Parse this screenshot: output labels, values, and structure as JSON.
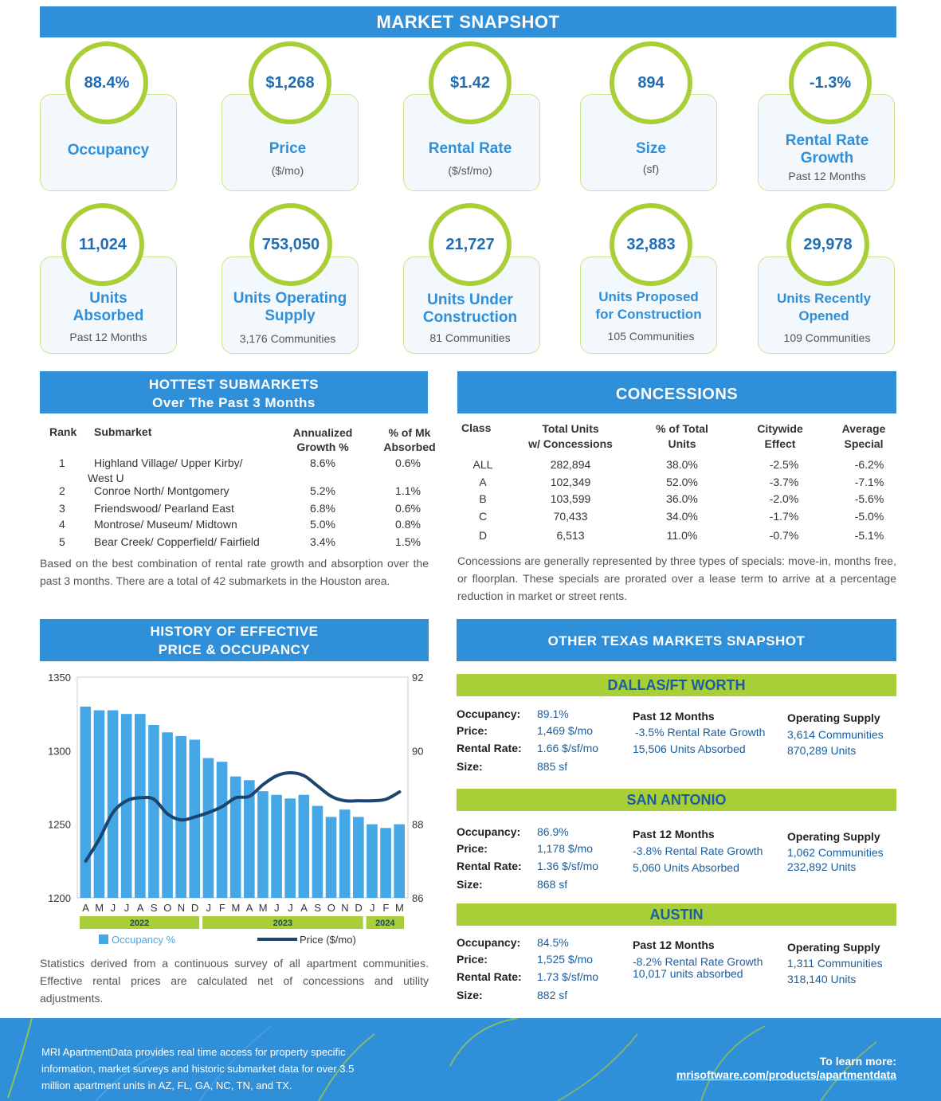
{
  "snapshot_title": "MARKET SNAPSHOT",
  "stats_row1": [
    {
      "value": "88.4%",
      "label": "Occupancy",
      "sub": ""
    },
    {
      "value": "$1,268",
      "label": "Price",
      "sub": "($/mo)"
    },
    {
      "value": "$1.42",
      "label": "Rental Rate",
      "sub": "($/sf/mo)"
    },
    {
      "value": "894",
      "label": "Size",
      "sub": "(sf)"
    },
    {
      "value": "-1.3%",
      "label": "Rental Rate Growth",
      "sub": "Past 12 Months"
    }
  ],
  "stats_row2": [
    {
      "value": "11,024",
      "label": "Units Absorbed",
      "sub": "Past 12 Months"
    },
    {
      "value": "753,050",
      "label": "Units Operating Supply",
      "sub": "3,176 Communities"
    },
    {
      "value": "21,727",
      "label": "Units Under Construction",
      "sub": "81 Communities"
    },
    {
      "value": "32,883",
      "label": "Units Proposed for Construction",
      "sub": "105 Communities"
    },
    {
      "value": "29,978",
      "label": "Units Recently Opened",
      "sub": "109 Communities"
    }
  ],
  "hottest": {
    "title1": "HOTTEST SUBMARKETS",
    "title2": "Over The Past 3 Months",
    "headers": {
      "rank": "Rank",
      "submarket": "Submarket",
      "growth1": "Annualized",
      "growth2": "Growth %",
      "abs1": "% of Mk",
      "abs2": "Absorbed"
    },
    "rows": [
      {
        "rank": "1",
        "name": "Highland Village/ Upper Kirby/",
        "name2": "West U",
        "growth": "8.6%",
        "absorbed": "0.6%"
      },
      {
        "rank": "2",
        "name": "Conroe North/ Montgomery",
        "name2": "",
        "growth": "5.2%",
        "absorbed": "1.1%"
      },
      {
        "rank": "3",
        "name": "Friendswood/ Pearland East",
        "name2": "",
        "growth": "6.8%",
        "absorbed": "0.6%"
      },
      {
        "rank": "4",
        "name": "Montrose/ Museum/ Midtown",
        "name2": "",
        "growth": "5.0%",
        "absorbed": "0.8%"
      },
      {
        "rank": "5",
        "name": "Bear Creek/ Copperfield/ Fairfield",
        "name2": "",
        "growth": "3.4%",
        "absorbed": "1.5%"
      }
    ],
    "note": "Based on the best combination of rental rate growth and absorption over the past 3 months. There are a total of 42 submarkets in the Houston area."
  },
  "concessions": {
    "title": "CONCESSIONS",
    "headers": {
      "c1": "Class",
      "c2a": "Total Units",
      "c2b": "w/ Concessions",
      "c3a": "% of Total",
      "c3b": "Units",
      "c4a": "Citywide",
      "c4b": "Effect",
      "c5a": "Average",
      "c5b": "Special"
    },
    "rows": [
      {
        "cls": "ALL",
        "units": "282,894",
        "pct": "38.0%",
        "effect": "-2.5%",
        "special": "-6.2%"
      },
      {
        "cls": "A",
        "units": "102,349",
        "pct": "52.0%",
        "effect": "-3.7%",
        "special": "-7.1%"
      },
      {
        "cls": "B",
        "units": "103,599",
        "pct": "36.0%",
        "effect": "-2.0%",
        "special": "-5.6%"
      },
      {
        "cls": "C",
        "units": "70,433",
        "pct": "34.0%",
        "effect": "-1.7%",
        "special": "-5.0%"
      },
      {
        "cls": "D",
        "units": "6,513",
        "pct": "11.0%",
        "effect": "-0.7%",
        "special": "-5.1%"
      }
    ],
    "note": "Concessions are generally represented by three types of specials: move-in, months free, or floorplan. These specials are prorated over a lease term to arrive at a percentage reduction in market or street rents."
  },
  "history_title1": "HISTORY OF EFFECTIVE",
  "history_title2": "PRICE & OCCUPANCY",
  "chart_data": {
    "type": "bar",
    "title": "HISTORY OF EFFECTIVE PRICE & OCCUPANCY",
    "categories": [
      "A",
      "M",
      "J",
      "J",
      "A",
      "S",
      "O",
      "N",
      "D",
      "J",
      "F",
      "M",
      "A",
      "M",
      "J",
      "J",
      "A",
      "S",
      "O",
      "N",
      "D",
      "J",
      "F",
      "M"
    ],
    "year_labels": [
      "2022",
      "2023",
      "2024"
    ],
    "series": [
      {
        "name": "Occupancy %",
        "axis": "right",
        "type": "bar",
        "values": [
          91.2,
          91.1,
          91.1,
          91.0,
          91.0,
          90.7,
          90.5,
          90.4,
          90.3,
          89.8,
          89.7,
          89.3,
          89.2,
          88.9,
          88.8,
          88.7,
          88.8,
          88.5,
          88.2,
          88.4,
          88.2,
          88.0,
          87.9,
          88.0
        ]
      },
      {
        "name": "Price ($/mo)",
        "axis": "left",
        "type": "line",
        "values": [
          1225,
          1240,
          1258,
          1266,
          1268,
          1267,
          1257,
          1253,
          1255,
          1258,
          1262,
          1268,
          1269,
          1277,
          1283,
          1285,
          1283,
          1276,
          1269,
          1266,
          1266,
          1266,
          1267,
          1272
        ]
      }
    ],
    "left_axis": {
      "ylim": [
        1200,
        1350
      ],
      "ticks": [
        "1200",
        "1250",
        "1300",
        "1350"
      ]
    },
    "right_axis": {
      "ylim": [
        86,
        92
      ],
      "ticks": [
        "86",
        "88",
        "90",
        "92"
      ]
    },
    "legend": {
      "bar_label": "Occupancy %",
      "line_label": "Price ($/mo)"
    }
  },
  "history_note": "Statistics derived from a continuous survey of all apartment communities. Effective rental prices are calculated net of concessions and utility adjustments.",
  "other_markets_title": "OTHER TEXAS MARKETS SNAPSHOT",
  "labels": {
    "occupancy": "Occupancy:",
    "price": "Price:",
    "rental": "Rental Rate:",
    "size": "Size:",
    "past12": "Past 12 Months",
    "opsupply": "Operating Supply"
  },
  "markets": [
    {
      "name": "DALLAS/FT WORTH",
      "occupancy": "89.1%",
      "price": "1,469 $/mo",
      "rental": "1.66 $/sf/mo",
      "size": "885 sf",
      "growth": "-3.5% Rental Rate Growth",
      "absorbed": "15,506 Units Absorbed",
      "communities": "3,614 Communities",
      "units": "870,289 Units"
    },
    {
      "name": "SAN ANTONIO",
      "occupancy": "86.9%",
      "price": "1,178 $/mo",
      "rental": "1.36 $/sf/mo",
      "size": "868 sf",
      "growth": "-3.8% Rental Rate Growth",
      "absorbed": "5,060 Units Absorbed",
      "communities": "1,062 Communities",
      "units": "232,892 Units"
    },
    {
      "name": "AUSTIN",
      "occupancy": "84.5%",
      "price": "1,525 $/mo",
      "rental": "1.73 $/sf/mo",
      "size": "882 sf",
      "growth": "-8.2% Rental Rate Growth",
      "absorbed": "10,017 units absorbed",
      "communities": "1,311 Communities",
      "units": "318,140 Units"
    }
  ],
  "footer": {
    "text": "MRI ApartmentData provides real time access for property specific information, market surveys and historic submarket data for over 3.5 million apartment units in AZ, FL, GA, NC, TN, and TX.",
    "learn": "To learn more:",
    "link": "mrisoftware.com/products/apartmentdata"
  }
}
